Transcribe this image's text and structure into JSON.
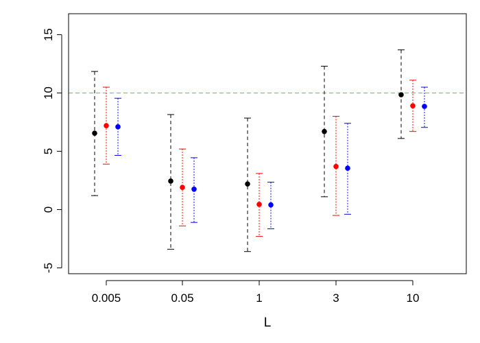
{
  "chart_data": {
    "type": "scatter",
    "title": "",
    "xlabel": "L",
    "ylabel": "",
    "categories": [
      "0.005",
      "0.05",
      "1",
      "3",
      "10"
    ],
    "ylim": [
      -5.5,
      16.8
    ],
    "yticks": [
      -5,
      0,
      5,
      10,
      15
    ],
    "grid": false,
    "legend": "none",
    "reference_line": {
      "y": 10,
      "color": "#4ec94e",
      "style": "dashed"
    },
    "series": [
      {
        "color": "#000000",
        "point": [
          6.55,
          2.45,
          2.2,
          6.7,
          9.85
        ],
        "lower": [
          1.2,
          -3.4,
          -3.6,
          1.1,
          6.1
        ],
        "upper": [
          11.85,
          8.15,
          7.85,
          12.3,
          13.7
        ]
      },
      {
        "color": "#ff0000",
        "point": [
          7.2,
          1.9,
          0.45,
          3.7,
          8.9
        ],
        "lower": [
          3.9,
          -1.4,
          -2.3,
          -0.5,
          6.7
        ],
        "upper": [
          10.5,
          5.2,
          3.1,
          8.0,
          11.1
        ]
      },
      {
        "color": "#0000ff",
        "point": [
          7.1,
          1.75,
          0.4,
          3.55,
          8.85
        ],
        "lower": [
          4.65,
          -1.1,
          -1.65,
          -0.4,
          7.05
        ],
        "upper": [
          9.55,
          4.45,
          2.35,
          7.4,
          10.5
        ]
      }
    ]
  }
}
